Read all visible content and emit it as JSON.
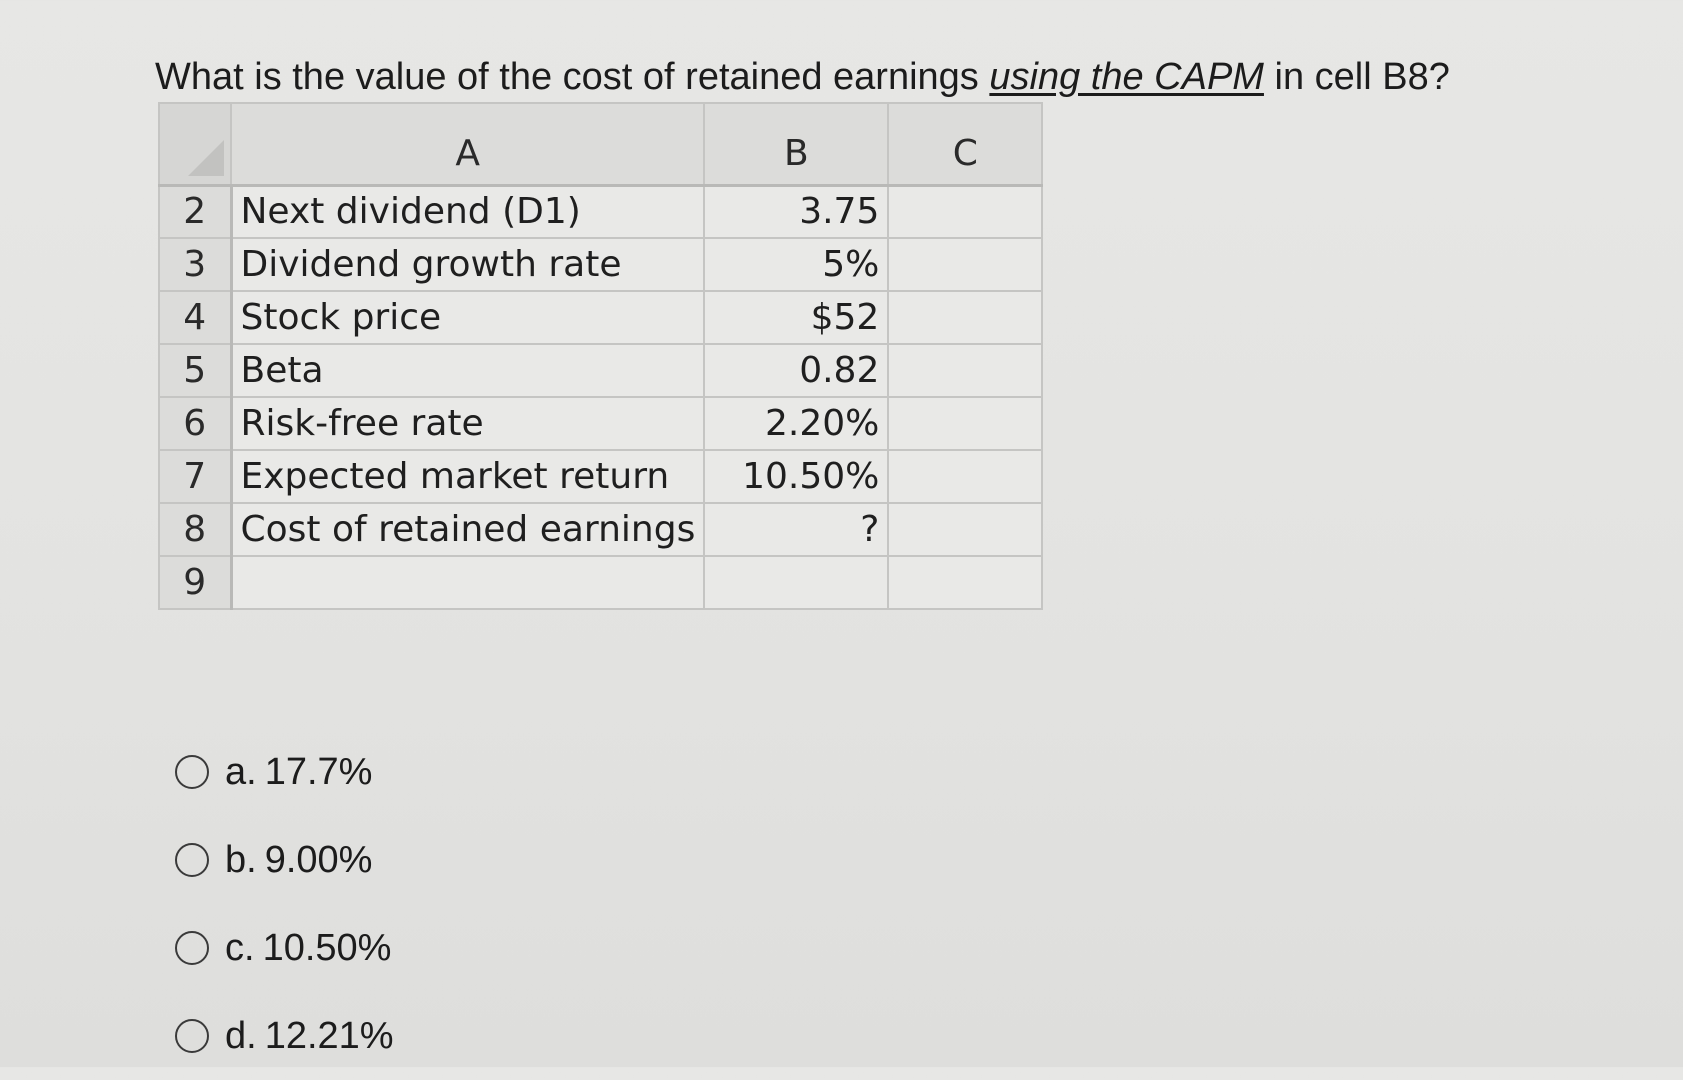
{
  "question": {
    "before": "What is the value of the cost of retained earnings ",
    "emphasis": "using the CAPM",
    "after": " in cell B8?"
  },
  "spreadsheet": {
    "column_headers": [
      "A",
      "B",
      "C"
    ],
    "rows": [
      {
        "num": "2",
        "label": "Next dividend (D1)",
        "value": "3.75"
      },
      {
        "num": "3",
        "label": "Dividend growth rate",
        "value": "5%"
      },
      {
        "num": "4",
        "label": "Stock price",
        "value": "$52"
      },
      {
        "num": "5",
        "label": "Beta",
        "value": "0.82"
      },
      {
        "num": "6",
        "label": "Risk-free rate",
        "value": "2.20%"
      },
      {
        "num": "7",
        "label": "Expected market return",
        "value": "10.50%"
      },
      {
        "num": "8",
        "label": "Cost of retained earnings",
        "value": "?"
      },
      {
        "num": "9",
        "label": "",
        "value": ""
      }
    ]
  },
  "options": [
    {
      "letter": "a.",
      "text": "17.7%"
    },
    {
      "letter": "b.",
      "text": "9.00%"
    },
    {
      "letter": "c.",
      "text": "10.50%"
    },
    {
      "letter": "d.",
      "text": "12.21%"
    }
  ]
}
